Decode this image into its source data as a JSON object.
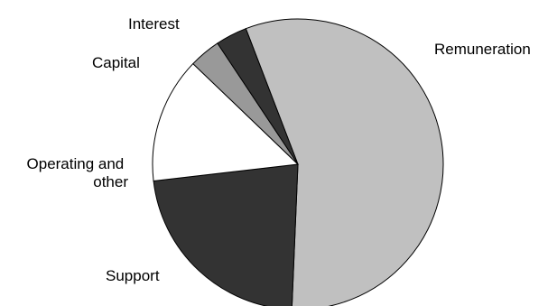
{
  "chart_data": {
    "type": "pie",
    "title": "",
    "start_angle_deg": -21,
    "direction": "clockwise",
    "legend": "none",
    "slices": [
      {
        "label": "Remuneration",
        "value": 56.5,
        "color": "#c0c0c0"
      },
      {
        "label": "Support",
        "value": 22.5,
        "color": "#333333"
      },
      {
        "label": "Operating and other",
        "value": 14.0,
        "color": "#ffffff"
      },
      {
        "label": "Capital",
        "value": 3.5,
        "color": "#999999"
      },
      {
        "label": "Interest",
        "value": 3.5,
        "color": "#333333"
      }
    ]
  }
}
